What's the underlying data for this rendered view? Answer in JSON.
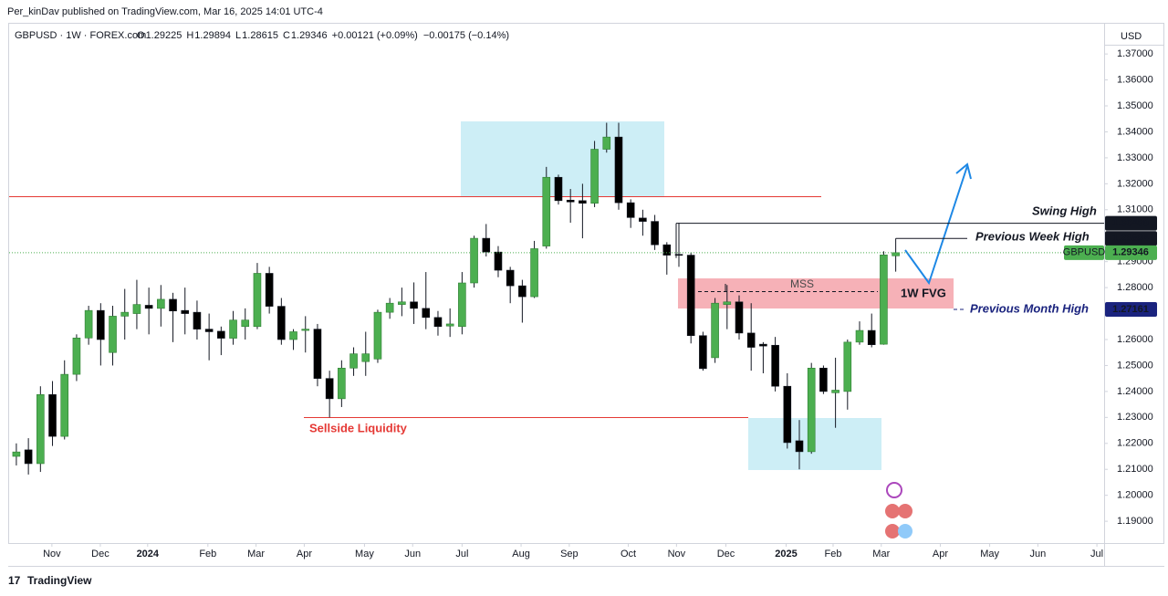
{
  "header": {
    "publisher": "Per_kinDav published on TradingView.com, Mar 16, 2025 14:01 UTC-4"
  },
  "footer": {
    "brand": "TradingView"
  },
  "chart_data": {
    "type": "candlestick",
    "symbol": "GBPUSD · 1W · FOREX.com",
    "legend_values": [
      {
        "key": "O",
        "text": "1.29225"
      },
      {
        "key": "H",
        "text": "1.29894"
      },
      {
        "key": "L",
        "text": "1.28615"
      },
      {
        "key": "C",
        "text": "1.29346"
      }
    ],
    "change": "+0.00121 (+0.09%)",
    "change_2": "−0.00175 (−0.14%)",
    "currency": "USD",
    "up_color": "#4caf50",
    "down_color": "#000000",
    "open": [
      1.215,
      1.2175,
      1.2122,
      1.2388,
      1.2227,
      1.2466,
      1.2606,
      1.2712,
      1.255,
      1.269,
      1.27,
      1.2732,
      1.272,
      1.2755,
      1.2712,
      1.2705,
      1.264,
      1.2632,
      1.2605,
      1.265,
      1.265,
      1.2855,
      1.2728,
      1.26,
      1.2635,
      1.264,
      1.245,
      1.2372,
      1.249,
      1.2515,
      1.2525,
      1.2705,
      1.2735,
      1.2745,
      1.272,
      1.2685,
      1.2652,
      1.265,
      1.2818,
      1.299,
      1.2937,
      1.2867,
      1.2807,
      1.2765,
      1.296,
      1.3225,
      1.3137,
      1.3135,
      1.3125,
      1.3333,
      1.338,
      1.3127,
      1.3068,
      1.3055,
      1.2965,
      1.2928,
      1.2925,
      1.2615,
      1.253,
      1.2735,
      1.2745,
      1.2625,
      1.2582,
      1.2578,
      1.242,
      1.221,
      1.2168,
      1.249,
      1.2395,
      1.24,
      1.259,
      1.2635,
      1.2582,
      1.29225
    ],
    "high": [
      1.22,
      1.222,
      1.242,
      1.244,
      1.252,
      1.262,
      1.273,
      1.274,
      1.273,
      1.2795,
      1.283,
      1.28,
      1.281,
      1.278,
      1.28,
      1.275,
      1.27,
      1.265,
      1.271,
      1.272,
      1.2895,
      1.288,
      1.276,
      1.264,
      1.269,
      1.266,
      1.248,
      1.252,
      1.257,
      1.263,
      1.2715,
      1.276,
      1.28,
      1.282,
      1.286,
      1.271,
      1.272,
      1.286,
      1.3,
      1.3045,
      1.296,
      1.288,
      1.283,
      1.298,
      1.3265,
      1.3235,
      1.318,
      1.32,
      1.3365,
      1.3435,
      1.3435,
      1.314,
      1.31,
      1.308,
      1.2975,
      1.305,
      1.2935,
      1.263,
      1.276,
      1.281,
      1.277,
      1.274,
      1.259,
      1.261,
      1.247,
      1.229,
      1.251,
      1.25,
      1.253,
      1.26,
      1.267,
      1.27,
      1.294,
      1.29894
    ],
    "low": [
      1.2115,
      1.208,
      1.209,
      1.219,
      1.2215,
      1.244,
      1.258,
      1.25,
      1.25,
      1.26,
      1.264,
      1.262,
      1.265,
      1.259,
      1.262,
      1.26,
      1.252,
      1.254,
      1.258,
      1.26,
      1.264,
      1.27,
      1.258,
      1.256,
      1.255,
      1.242,
      1.23,
      1.234,
      1.246,
      1.246,
      1.251,
      1.268,
      1.269,
      1.266,
      1.264,
      1.2615,
      1.261,
      1.262,
      1.28,
      1.292,
      1.284,
      1.274,
      1.2665,
      1.276,
      1.295,
      1.312,
      1.305,
      1.299,
      1.311,
      1.332,
      1.31,
      1.303,
      1.3,
      1.2945,
      1.285,
      1.288,
      1.2585,
      1.248,
      1.251,
      1.264,
      1.26,
      1.248,
      1.247,
      1.24,
      1.218,
      1.21,
      1.216,
      1.239,
      1.226,
      1.233,
      1.258,
      1.257,
      1.258,
      1.28615
    ],
    "close": [
      1.2167,
      1.2122,
      1.2388,
      1.2227,
      1.2466,
      1.2606,
      1.2712,
      1.26,
      1.269,
      1.2705,
      1.2735,
      1.272,
      1.2755,
      1.271,
      1.27,
      1.264,
      1.263,
      1.2605,
      1.2675,
      1.2675,
      1.2855,
      1.2728,
      1.26,
      1.263,
      1.264,
      1.245,
      1.2372,
      1.249,
      1.2545,
      1.2545,
      1.2705,
      1.274,
      1.2745,
      1.272,
      1.2685,
      1.265,
      1.266,
      1.2818,
      1.299,
      1.2937,
      1.2867,
      1.2807,
      1.2765,
      1.295,
      1.3225,
      1.3135,
      1.313,
      1.3125,
      1.3333,
      1.338,
      1.3127,
      1.307,
      1.3055,
      1.2965,
      1.2925,
      1.2925,
      1.2615,
      1.2488,
      1.274,
      1.2745,
      1.2625,
      1.257,
      1.2575,
      1.242,
      1.2203,
      1.2168,
      1.249,
      1.24,
      1.2405,
      1.259,
      1.2635,
      1.258,
      1.2926,
      1.29346
    ],
    "ylim": [
      1.1816,
      1.382
    ],
    "yticks": [
      {
        "value": 1.19,
        "label": "1.19000"
      },
      {
        "value": 1.2,
        "label": "1.20000"
      },
      {
        "value": 1.21,
        "label": "1.21000"
      },
      {
        "value": 1.22,
        "label": "1.22000"
      },
      {
        "value": 1.23,
        "label": "1.23000"
      },
      {
        "value": 1.24,
        "label": "1.24000"
      },
      {
        "value": 1.25,
        "label": "1.25000"
      },
      {
        "value": 1.26,
        "label": "1.26000"
      },
      {
        "value": 1.28,
        "label": "1.28000"
      },
      {
        "value": 1.29,
        "label": "1.29000"
      },
      {
        "value": 1.31,
        "label": "1.31000"
      },
      {
        "value": 1.32,
        "label": "1.32000"
      },
      {
        "value": 1.33,
        "label": "1.33000"
      },
      {
        "value": 1.34,
        "label": "1.34000"
      },
      {
        "value": 1.35,
        "label": "1.35000"
      },
      {
        "value": 1.36,
        "label": "1.36000"
      },
      {
        "value": 1.37,
        "label": "1.37000"
      }
    ],
    "xlim": [
      -0.6,
      90.3
    ],
    "xticks": [
      {
        "value": 2.95,
        "label": "Nov"
      },
      {
        "value": 6.97,
        "label": "Dec"
      },
      {
        "value": 10.9,
        "label": "2024"
      },
      {
        "value": 15.9,
        "label": "Feb"
      },
      {
        "value": 19.9,
        "label": "Mar"
      },
      {
        "value": 23.9,
        "label": "Apr"
      },
      {
        "value": 28.9,
        "label": "May"
      },
      {
        "value": 32.9,
        "label": "Jun"
      },
      {
        "value": 37.0,
        "label": "Jul"
      },
      {
        "value": 41.9,
        "label": "Aug"
      },
      {
        "value": 45.9,
        "label": "Sep"
      },
      {
        "value": 50.8,
        "label": "Oct"
      },
      {
        "value": 54.8,
        "label": "Nov"
      },
      {
        "value": 58.9,
        "label": "Dec"
      },
      {
        "value": 63.9,
        "label": "2025"
      },
      {
        "value": 67.8,
        "label": "Feb"
      },
      {
        "value": 71.8,
        "label": "Mar"
      },
      {
        "value": 76.7,
        "label": "Apr"
      },
      {
        "value": 80.8,
        "label": "May"
      },
      {
        "value": 84.8,
        "label": "Jun"
      },
      {
        "value": 89.7,
        "label": "Jul"
      }
    ],
    "price_labels": [
      {
        "value": 1.3048,
        "label": "1.30480",
        "color": "#131722"
      },
      {
        "value": 1.29894,
        "label": "1.29894",
        "color": "#131722"
      },
      {
        "value": 1.29346,
        "label": "1.29346",
        "name": "GBPUSD",
        "color": "#4caf50"
      },
      {
        "value": 1.27161,
        "label": "1.27161",
        "color": "#1a237e"
      }
    ],
    "annotations": {
      "swing_high": "Swing High",
      "previous_week_high": "Previous Week High",
      "previous_month_high": "Previous Month High",
      "mss": "MSS",
      "fvg": "1W FVG",
      "sellside": "Sellside Liquidity"
    }
  }
}
